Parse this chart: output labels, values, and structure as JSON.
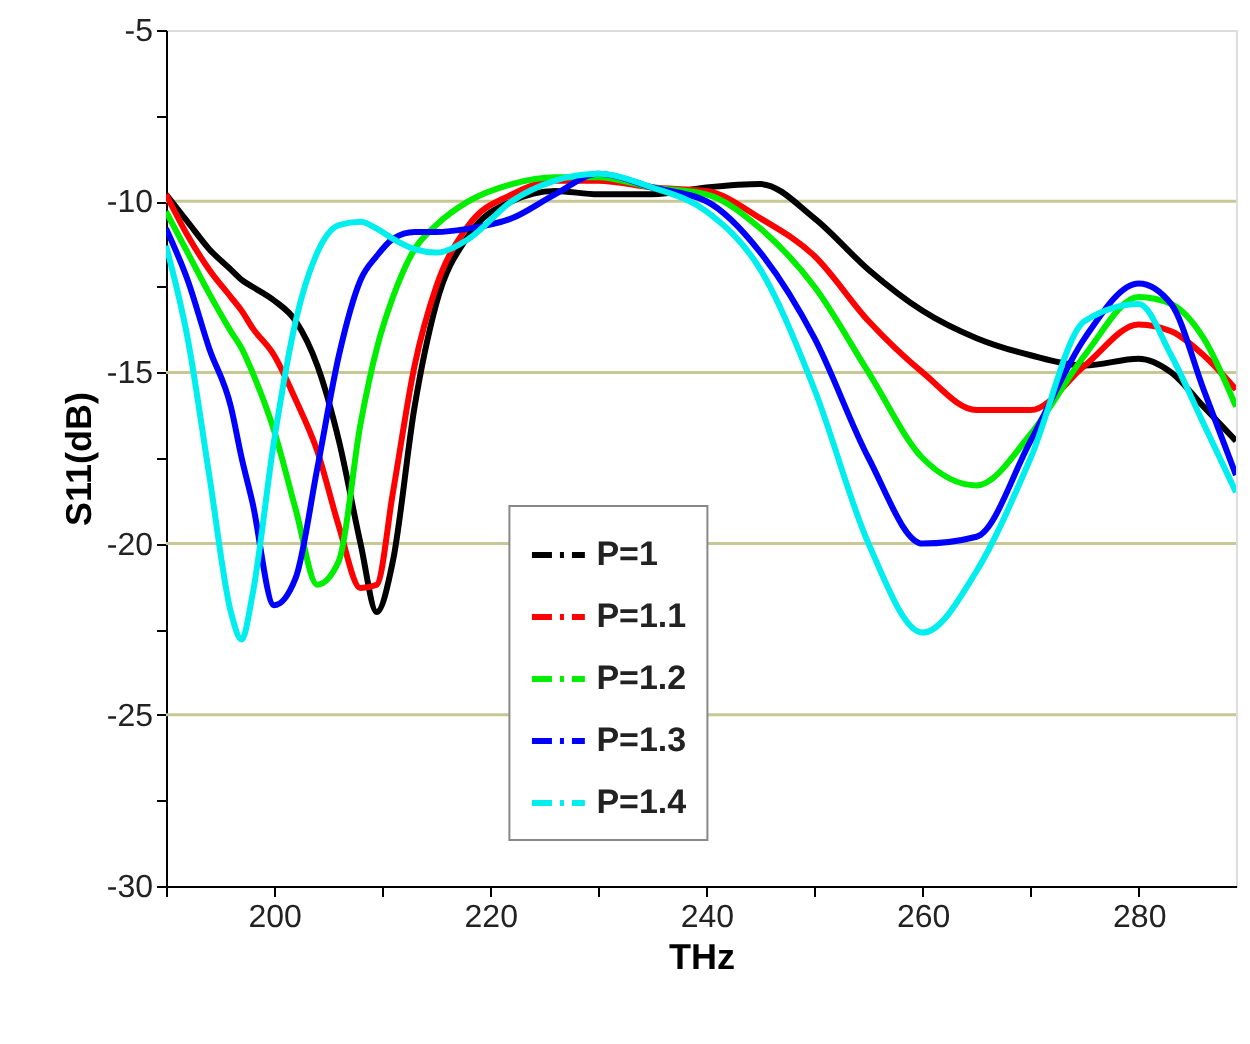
{
  "chart_data": {
    "type": "line",
    "xlabel": "THz",
    "ylabel": "S11(dB)",
    "xlim": [
      190,
      289
    ],
    "ylim": [
      -30,
      -5
    ],
    "xticks": [
      {
        "value": 190,
        "label": null
      },
      200,
      {
        "value": 210,
        "label": null
      },
      220,
      {
        "value": 230,
        "label": null
      },
      240,
      {
        "value": 250,
        "label": null
      },
      260,
      {
        "value": 270,
        "label": null
      },
      280
    ],
    "yticks": [
      -30,
      {
        "value": -27.5,
        "label": null
      },
      -25,
      {
        "value": -22.5,
        "label": null
      },
      -20,
      {
        "value": -17.5,
        "label": null
      },
      -15,
      {
        "value": -12.5,
        "label": null
      },
      -10,
      {
        "value": -7.5,
        "label": null
      },
      -5
    ],
    "grid": "y",
    "legend": "bottom",
    "line_style": "solid",
    "marker": "none",
    "x": [
      190,
      192,
      194,
      196,
      197,
      198,
      200,
      202,
      204,
      206,
      208,
      209.5,
      211,
      213,
      215,
      218,
      222,
      226,
      230,
      235,
      240,
      245,
      250,
      255,
      260,
      265,
      270,
      275,
      280,
      283,
      286,
      289
    ],
    "series": [
      {
        "name": "P=1",
        "color": "#000000",
        "values": [
          -9.8,
          -10.6,
          -11.4,
          -12.0,
          -12.3,
          -12.5,
          -12.9,
          -13.5,
          -14.8,
          -17.0,
          -20.0,
          -22.0,
          -20.5,
          -16.0,
          -13.0,
          -11.0,
          -10.0,
          -9.7,
          -9.8,
          -9.8,
          -9.6,
          -9.5,
          -10.5,
          -12.0,
          -13.2,
          -14.0,
          -14.5,
          -14.8,
          -14.6,
          -15.0,
          -16.0,
          -17.0
        ]
      },
      {
        "name": "P=1.1",
        "color": "#ff0000",
        "values": [
          -9.8,
          -11.0,
          -12.0,
          -12.8,
          -13.2,
          -13.7,
          -14.5,
          -15.8,
          -17.3,
          -19.5,
          -21.3,
          -21.2,
          -18.5,
          -14.8,
          -12.5,
          -10.7,
          -9.8,
          -9.4,
          -9.4,
          -9.6,
          -9.7,
          -10.5,
          -11.6,
          -13.5,
          -15.0,
          -16.1,
          -16.1,
          -14.8,
          -13.6,
          -13.8,
          -14.5,
          -15.5
        ]
      },
      {
        "name": "P=1.2",
        "color": "#00ee00",
        "values": [
          -10.3,
          -11.5,
          -12.7,
          -13.8,
          -14.3,
          -15.0,
          -16.7,
          -19.0,
          -21.2,
          -20.5,
          -16.5,
          -14.3,
          -12.8,
          -11.4,
          -10.7,
          -10.0,
          -9.5,
          -9.3,
          -9.3,
          -9.6,
          -9.8,
          -10.8,
          -12.5,
          -15.0,
          -17.5,
          -18.3,
          -16.8,
          -14.5,
          -12.8,
          -13.0,
          -14.0,
          -16.0
        ]
      },
      {
        "name": "P=1.3",
        "color": "#0000ff",
        "values": [
          -10.8,
          -12.3,
          -14.3,
          -16.0,
          -17.5,
          -18.8,
          -21.8,
          -21.0,
          -17.8,
          -14.5,
          -12.3,
          -11.6,
          -11.1,
          -10.9,
          -10.9,
          -10.8,
          -10.5,
          -9.8,
          -9.2,
          -9.6,
          -10.0,
          -11.5,
          -14.0,
          -17.5,
          -20.0,
          -19.8,
          -17.0,
          -14.0,
          -12.4,
          -13.0,
          -15.5,
          -18.0
        ]
      },
      {
        "name": "P=1.4",
        "color": "#00eeee",
        "values": [
          -11.3,
          -14.0,
          -18.0,
          -22.0,
          -22.8,
          -21.5,
          -17.0,
          -13.5,
          -11.5,
          -10.7,
          -10.6,
          -10.8,
          -11.1,
          -11.4,
          -11.5,
          -11.1,
          -10.0,
          -9.4,
          -9.2,
          -9.6,
          -10.3,
          -12.0,
          -15.5,
          -20.0,
          -22.6,
          -20.8,
          -17.5,
          -13.5,
          -13.0,
          -14.5,
          -16.5,
          -18.5
        ]
      }
    ]
  }
}
